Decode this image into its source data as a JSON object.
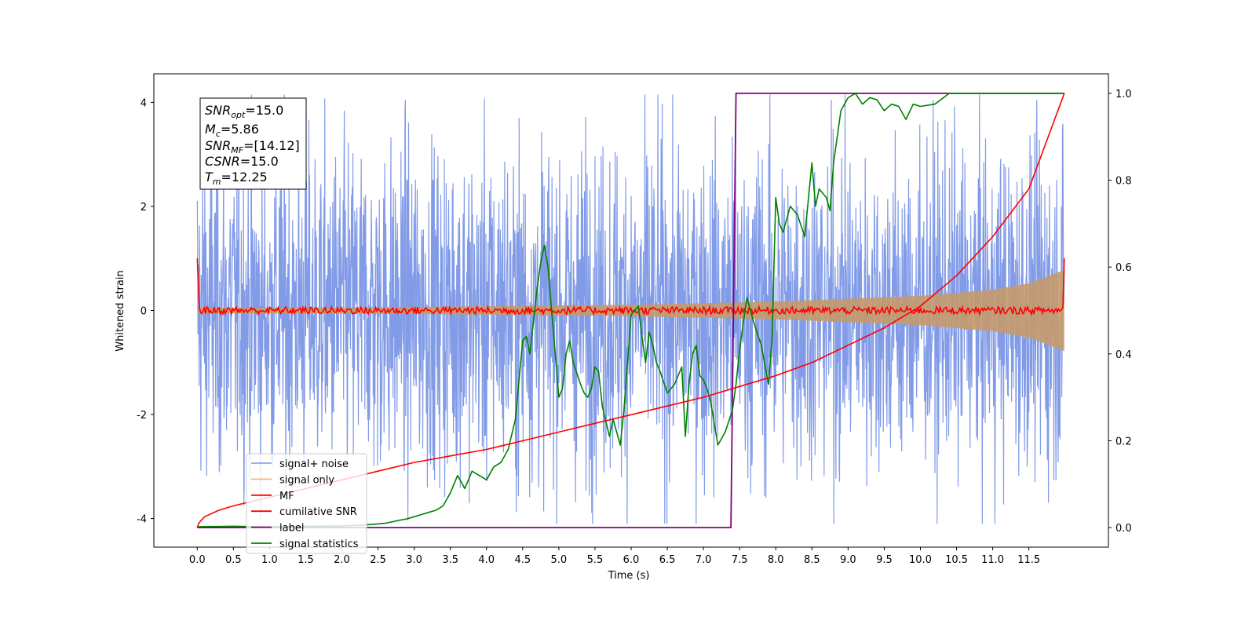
{
  "chart_data": {
    "type": "line",
    "xlabel": "Time (s)",
    "ylabel": "Whitened strain",
    "ylabel_right": "",
    "xlim": [
      -0.6,
      12.6
    ],
    "ylim": [
      -4.55,
      4.55
    ],
    "ylim_right": [
      -0.045,
      1.045
    ],
    "x_ticks": [
      "0.0",
      "0.5",
      "1.0",
      "1.5",
      "2.0",
      "2.5",
      "3.0",
      "3.5",
      "4.0",
      "4.5",
      "5.0",
      "5.5",
      "6.0",
      "6.5",
      "7.0",
      "7.5",
      "8.0",
      "8.5",
      "9.0",
      "9.5",
      "10.0",
      "10.5",
      "11.0",
      "11.5"
    ],
    "y_ticks": [
      "-4",
      "-2",
      "0",
      "2",
      "4"
    ],
    "y_ticks_right": [
      "0.0",
      "0.2",
      "0.4",
      "0.6",
      "0.8",
      "1.0"
    ],
    "grid": false,
    "legend_position": "lower-left",
    "annotation": {
      "snr_opt": {
        "base": "SNR",
        "sub": "opt",
        "value": "=15.0"
      },
      "mc": {
        "base": "M",
        "sub": "c",
        "value": "=5.86"
      },
      "snr_mf": {
        "base": "SNR",
        "sub": "MF",
        "value": "=[14.12]"
      },
      "csnr": {
        "base": "CSNR",
        "sub": "",
        "value": "=15.0"
      },
      "tm": {
        "base": "T",
        "sub": "m",
        "value": "=12.25"
      }
    },
    "series": [
      {
        "name": "signal+ noise",
        "color": "#7b96e6",
        "axis": "left",
        "description_values": {
          "x_range": [
            0,
            11.99
          ],
          "approx_amplitude": 1.6,
          "min": -4.1,
          "max": 4.15
        }
      },
      {
        "name": "signal only",
        "color": "#f5b97a",
        "axis": "left",
        "envelope": {
          "x": [
            0,
            2,
            4,
            6,
            8,
            10,
            11,
            11.5,
            11.99
          ],
          "amp": [
            0.05,
            0.06,
            0.08,
            0.11,
            0.17,
            0.28,
            0.4,
            0.52,
            0.78
          ]
        }
      },
      {
        "name": "MF",
        "color": "#ff0000",
        "axis": "left",
        "description_values": {
          "baseline": 0.0,
          "noise": 0.05,
          "start_value": 1.0,
          "end_value": 1.0
        }
      },
      {
        "name": "cumilative SNR",
        "color": "#ff0000",
        "axis": "right",
        "x": [
          0.0,
          0.02,
          0.1,
          0.3,
          0.5,
          1.0,
          1.5,
          2.0,
          2.5,
          3.0,
          3.5,
          4.0,
          4.5,
          5.0,
          5.5,
          6.0,
          6.5,
          7.0,
          7.5,
          8.0,
          8.5,
          9.0,
          9.5,
          10.0,
          10.5,
          11.0,
          11.5,
          11.99
        ],
        "y": [
          0.0,
          0.01,
          0.025,
          0.04,
          0.05,
          0.07,
          0.09,
          0.11,
          0.13,
          0.15,
          0.165,
          0.18,
          0.2,
          0.22,
          0.24,
          0.26,
          0.28,
          0.3,
          0.325,
          0.35,
          0.38,
          0.42,
          0.46,
          0.51,
          0.58,
          0.67,
          0.78,
          1.0
        ]
      },
      {
        "name": "label",
        "color": "#800080",
        "axis": "right",
        "x": [
          0.0,
          7.38,
          7.45,
          11.99
        ],
        "y": [
          0.0,
          0.0,
          1.0,
          1.0
        ]
      },
      {
        "name": "signal statistics",
        "color": "#008000",
        "axis": "right",
        "x": [
          0.0,
          0.5,
          1.0,
          1.5,
          2.0,
          2.2,
          2.4,
          2.6,
          2.8,
          2.9,
          3.0,
          3.1,
          3.2,
          3.3,
          3.4,
          3.5,
          3.6,
          3.7,
          3.75,
          3.8,
          3.9,
          4.0,
          4.1,
          4.2,
          4.3,
          4.4,
          4.5,
          4.55,
          4.6,
          4.7,
          4.75,
          4.8,
          4.85,
          4.9,
          4.95,
          5.0,
          5.05,
          5.1,
          5.15,
          5.2,
          5.3,
          5.35,
          5.4,
          5.45,
          5.5,
          5.55,
          5.6,
          5.7,
          5.75,
          5.8,
          5.85,
          5.9,
          6.0,
          6.1,
          6.15,
          6.2,
          6.25,
          6.3,
          6.35,
          6.4,
          6.5,
          6.6,
          6.7,
          6.75,
          6.8,
          6.85,
          6.9,
          6.95,
          7.0,
          7.05,
          7.1,
          7.2,
          7.3,
          7.4,
          7.45,
          7.5,
          7.6,
          7.7,
          7.8,
          7.9,
          7.95,
          8.0,
          8.05,
          8.1,
          8.2,
          8.3,
          8.4,
          8.5,
          8.55,
          8.6,
          8.7,
          8.75,
          8.8,
          8.9,
          9.0,
          9.1,
          9.2,
          9.3,
          9.4,
          9.5,
          9.6,
          9.7,
          9.8,
          9.9,
          10.0,
          10.2,
          10.4,
          10.6,
          11.0,
          11.5,
          11.99
        ],
        "y": [
          0.002,
          0.003,
          0.002,
          0.003,
          0.004,
          0.005,
          0.007,
          0.01,
          0.017,
          0.02,
          0.025,
          0.03,
          0.035,
          0.04,
          0.05,
          0.08,
          0.12,
          0.09,
          0.11,
          0.13,
          0.12,
          0.11,
          0.14,
          0.15,
          0.18,
          0.25,
          0.43,
          0.44,
          0.4,
          0.55,
          0.61,
          0.65,
          0.6,
          0.5,
          0.4,
          0.3,
          0.32,
          0.4,
          0.43,
          0.38,
          0.33,
          0.31,
          0.3,
          0.32,
          0.37,
          0.36,
          0.28,
          0.21,
          0.25,
          0.22,
          0.19,
          0.27,
          0.49,
          0.51,
          0.44,
          0.38,
          0.45,
          0.42,
          0.38,
          0.36,
          0.31,
          0.33,
          0.37,
          0.21,
          0.33,
          0.4,
          0.42,
          0.35,
          0.34,
          0.32,
          0.29,
          0.19,
          0.22,
          0.27,
          0.33,
          0.41,
          0.53,
          0.47,
          0.42,
          0.33,
          0.44,
          0.76,
          0.7,
          0.68,
          0.74,
          0.72,
          0.67,
          0.84,
          0.74,
          0.78,
          0.76,
          0.73,
          0.84,
          0.96,
          0.99,
          1.0,
          0.975,
          0.99,
          0.985,
          0.96,
          0.975,
          0.97,
          0.94,
          0.975,
          0.97,
          0.975,
          1.0,
          1.0,
          1.0,
          1.0,
          1.0
        ]
      }
    ]
  }
}
